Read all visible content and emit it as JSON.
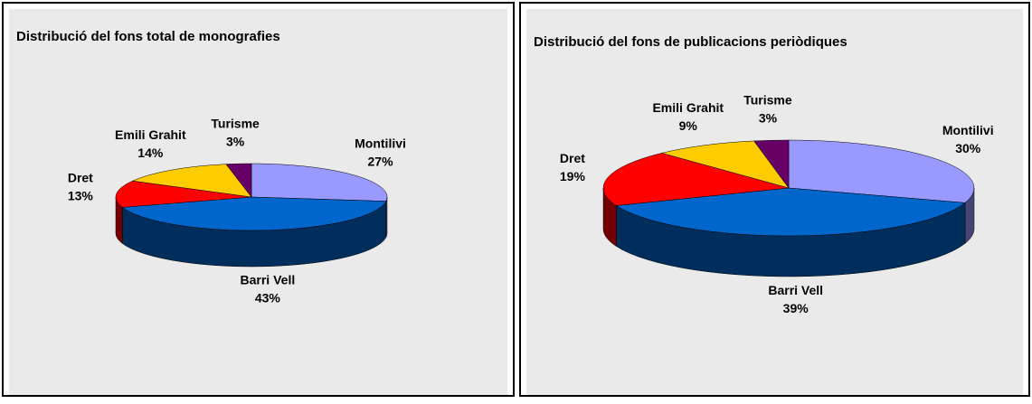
{
  "chart_data": [
    {
      "type": "pie3d",
      "title": "Distribució del fons total de monografies",
      "categories": [
        "Montilivi",
        "Barri Vell",
        "Dret",
        "Emili Grahit",
        "Turisme"
      ],
      "values": [
        27,
        43,
        13,
        14,
        3
      ],
      "value_labels": [
        "27%",
        "43%",
        "13%",
        "14%",
        "3%"
      ],
      "colors": [
        "#9999ff",
        "#0066cc",
        "#ff0000",
        "#ffcc00",
        "#660066"
      ]
    },
    {
      "type": "pie3d",
      "title": "Distribució del fons de publicacions periòdiques",
      "categories": [
        "Montilivi",
        "Barri Vell",
        "Dret",
        "Emili Grahit",
        "Turisme"
      ],
      "values": [
        30,
        39,
        19,
        9,
        3
      ],
      "value_labels": [
        "30%",
        "39%",
        "19%",
        "9%",
        "3%"
      ],
      "colors": [
        "#9999ff",
        "#0066cc",
        "#ff0000",
        "#ffcc00",
        "#660066"
      ]
    }
  ]
}
